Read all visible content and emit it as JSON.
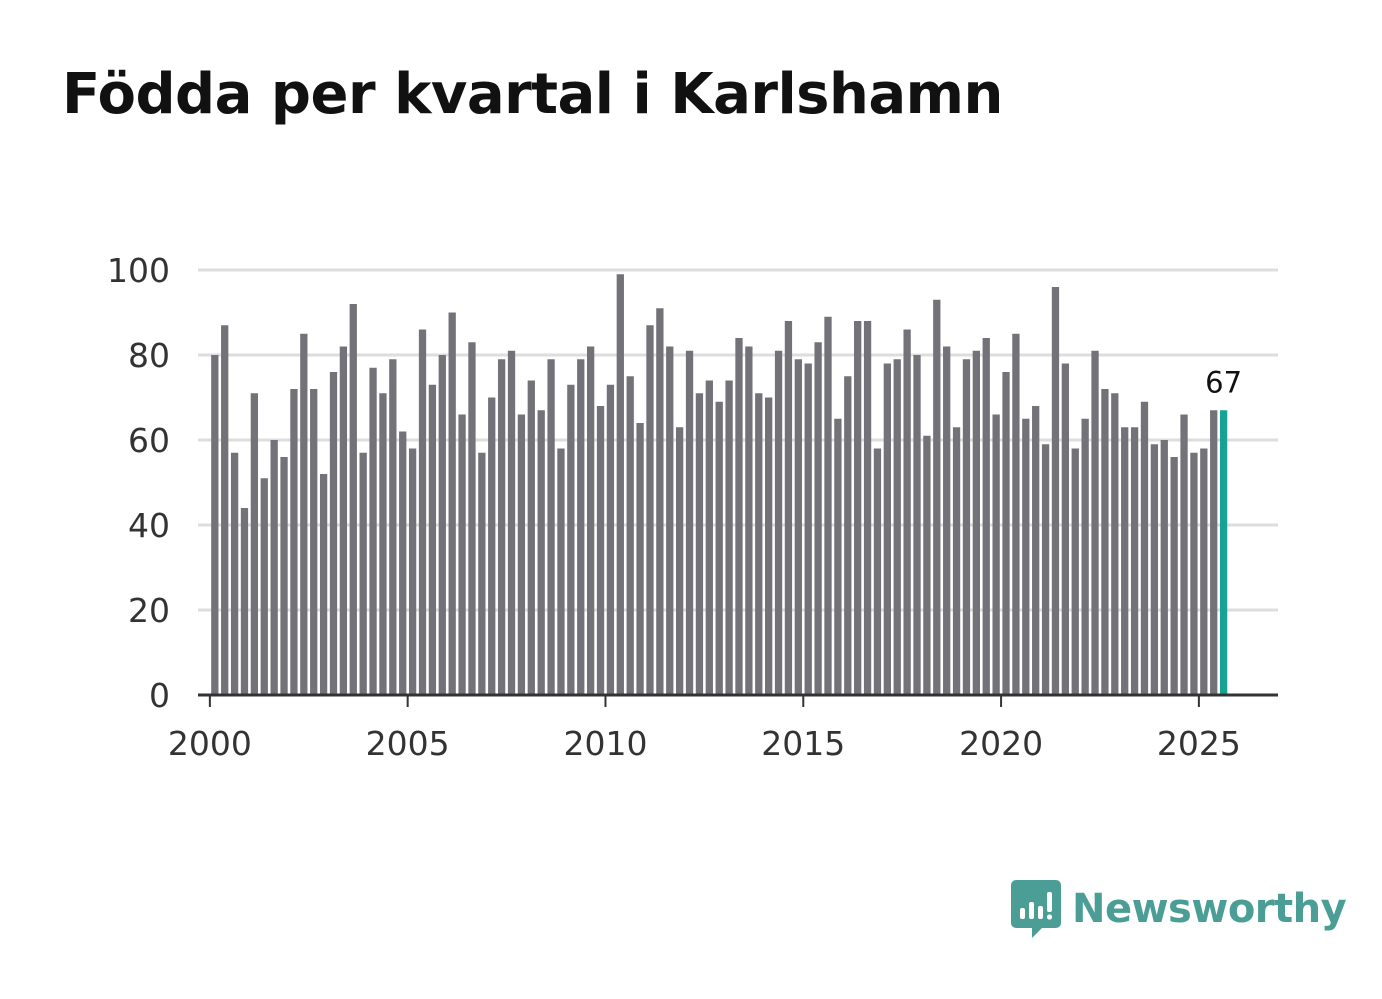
{
  "title": "Födda per kvartal i Karlshamn",
  "brand": {
    "name": "Newsworthy",
    "icon": "bar-chart-speech-bubble-icon",
    "color": "#4a9e95"
  },
  "colors": {
    "bar": "#737278",
    "highlight": "#16a396",
    "grid": "#dddddd",
    "axis": "#333333"
  },
  "chart_data": {
    "type": "bar",
    "title": "Födda per kvartal i Karlshamn",
    "xlabel": "",
    "ylabel": "",
    "ylim": [
      0,
      100
    ],
    "yticks": [
      0,
      20,
      40,
      60,
      80,
      100
    ],
    "xticks": [
      2000,
      2005,
      2010,
      2015,
      2020,
      2025
    ],
    "xlim": [
      1999.7,
      2027.0
    ],
    "x_start": 2000.125,
    "x_step": 0.25,
    "grid": true,
    "values": [
      80,
      87,
      57,
      44,
      71,
      51,
      60,
      56,
      72,
      85,
      72,
      52,
      76,
      82,
      92,
      57,
      77,
      71,
      79,
      62,
      58,
      86,
      73,
      80,
      90,
      66,
      83,
      57,
      70,
      79,
      81,
      66,
      74,
      67,
      79,
      58,
      73,
      79,
      82,
      68,
      73,
      99,
      75,
      64,
      87,
      91,
      82,
      63,
      81,
      71,
      74,
      69,
      74,
      84,
      82,
      71,
      70,
      81,
      88,
      79,
      78,
      83,
      89,
      65,
      75,
      88,
      88,
      58,
      78,
      79,
      86,
      80,
      61,
      93,
      82,
      63,
      79,
      81,
      84,
      66,
      76,
      85,
      65,
      68,
      59,
      96,
      78,
      58,
      65,
      81,
      72,
      71,
      63,
      63,
      69,
      59,
      60,
      56,
      66,
      57,
      58,
      67,
      67
    ],
    "highlight_last": true,
    "annotations": [
      {
        "text": "67",
        "index": 102
      }
    ]
  }
}
